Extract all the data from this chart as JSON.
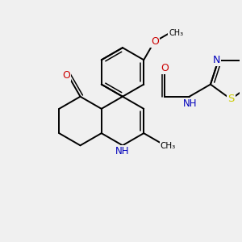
{
  "bg_color": "#f0f0f0",
  "bond_color": "#000000",
  "color_O": "#cc0000",
  "color_N": "#0000bb",
  "color_S": "#cccc00",
  "bond_lw": 1.4,
  "double_lw": 1.1,
  "fig_w": 3.0,
  "fig_h": 3.0,
  "dpi": 100,
  "xlim": [
    -0.5,
    6.5
  ],
  "ylim": [
    -0.5,
    6.5
  ]
}
